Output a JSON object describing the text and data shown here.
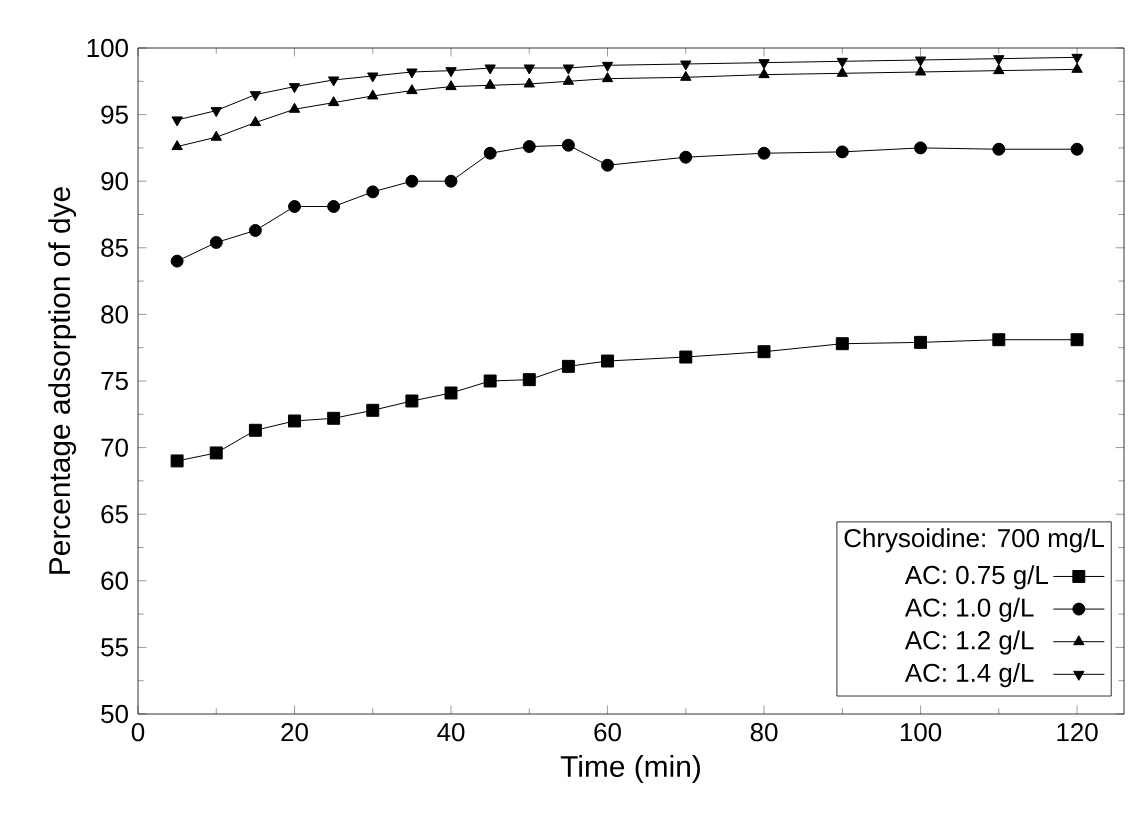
{
  "chart_data": {
    "type": "line",
    "xlabel": "Time (min)",
    "ylabel": "Percentage adsorption of dye",
    "legend_title": "Chrysoidine: 700 mg/L",
    "x": [
      5,
      10,
      15,
      20,
      25,
      30,
      35,
      40,
      45,
      50,
      55,
      60,
      70,
      80,
      90,
      100,
      110,
      120
    ],
    "series": [
      {
        "name": "AC: 0.75 g/L",
        "color": "#000000",
        "marker": "square",
        "values": [
          69.0,
          69.6,
          71.3,
          72.0,
          72.2,
          72.8,
          73.5,
          74.1,
          75.0,
          75.1,
          76.1,
          76.5,
          76.8,
          77.2,
          77.8,
          77.9,
          78.1,
          78.1
        ]
      },
      {
        "name": "AC: 1.0  g/L",
        "color": "#000000",
        "marker": "circle",
        "values": [
          84.0,
          85.4,
          86.3,
          88.1,
          88.1,
          89.2,
          90.0,
          90.0,
          92.1,
          92.6,
          92.7,
          91.2,
          91.8,
          92.1,
          92.2,
          92.5,
          92.4,
          92.4
        ]
      },
      {
        "name": "AC: 1.2  g/L",
        "color": "#000000",
        "marker": "triangle",
        "values": [
          92.6,
          93.3,
          94.4,
          95.4,
          95.9,
          96.4,
          96.8,
          97.1,
          97.2,
          97.3,
          97.5,
          97.7,
          97.8,
          98.0,
          98.1,
          98.2,
          98.3,
          98.4
        ]
      },
      {
        "name": "AC: 1.4  g/L",
        "color": "#000000",
        "marker": "triangle-down",
        "values": [
          94.6,
          95.3,
          96.5,
          97.1,
          97.6,
          97.9,
          98.2,
          98.3,
          98.5,
          98.5,
          98.5,
          98.7,
          98.8,
          98.9,
          99.0,
          99.1,
          99.2,
          99.3
        ]
      }
    ],
    "xlim": [
      0,
      126
    ],
    "ylim": [
      50,
      100
    ],
    "xticks": [
      0,
      20,
      40,
      60,
      80,
      100,
      120
    ],
    "yticks": [
      50,
      55,
      60,
      65,
      70,
      75,
      80,
      85,
      90,
      95,
      100
    ],
    "grid": false,
    "legend": "bottom right",
    "line_style": "solid"
  }
}
